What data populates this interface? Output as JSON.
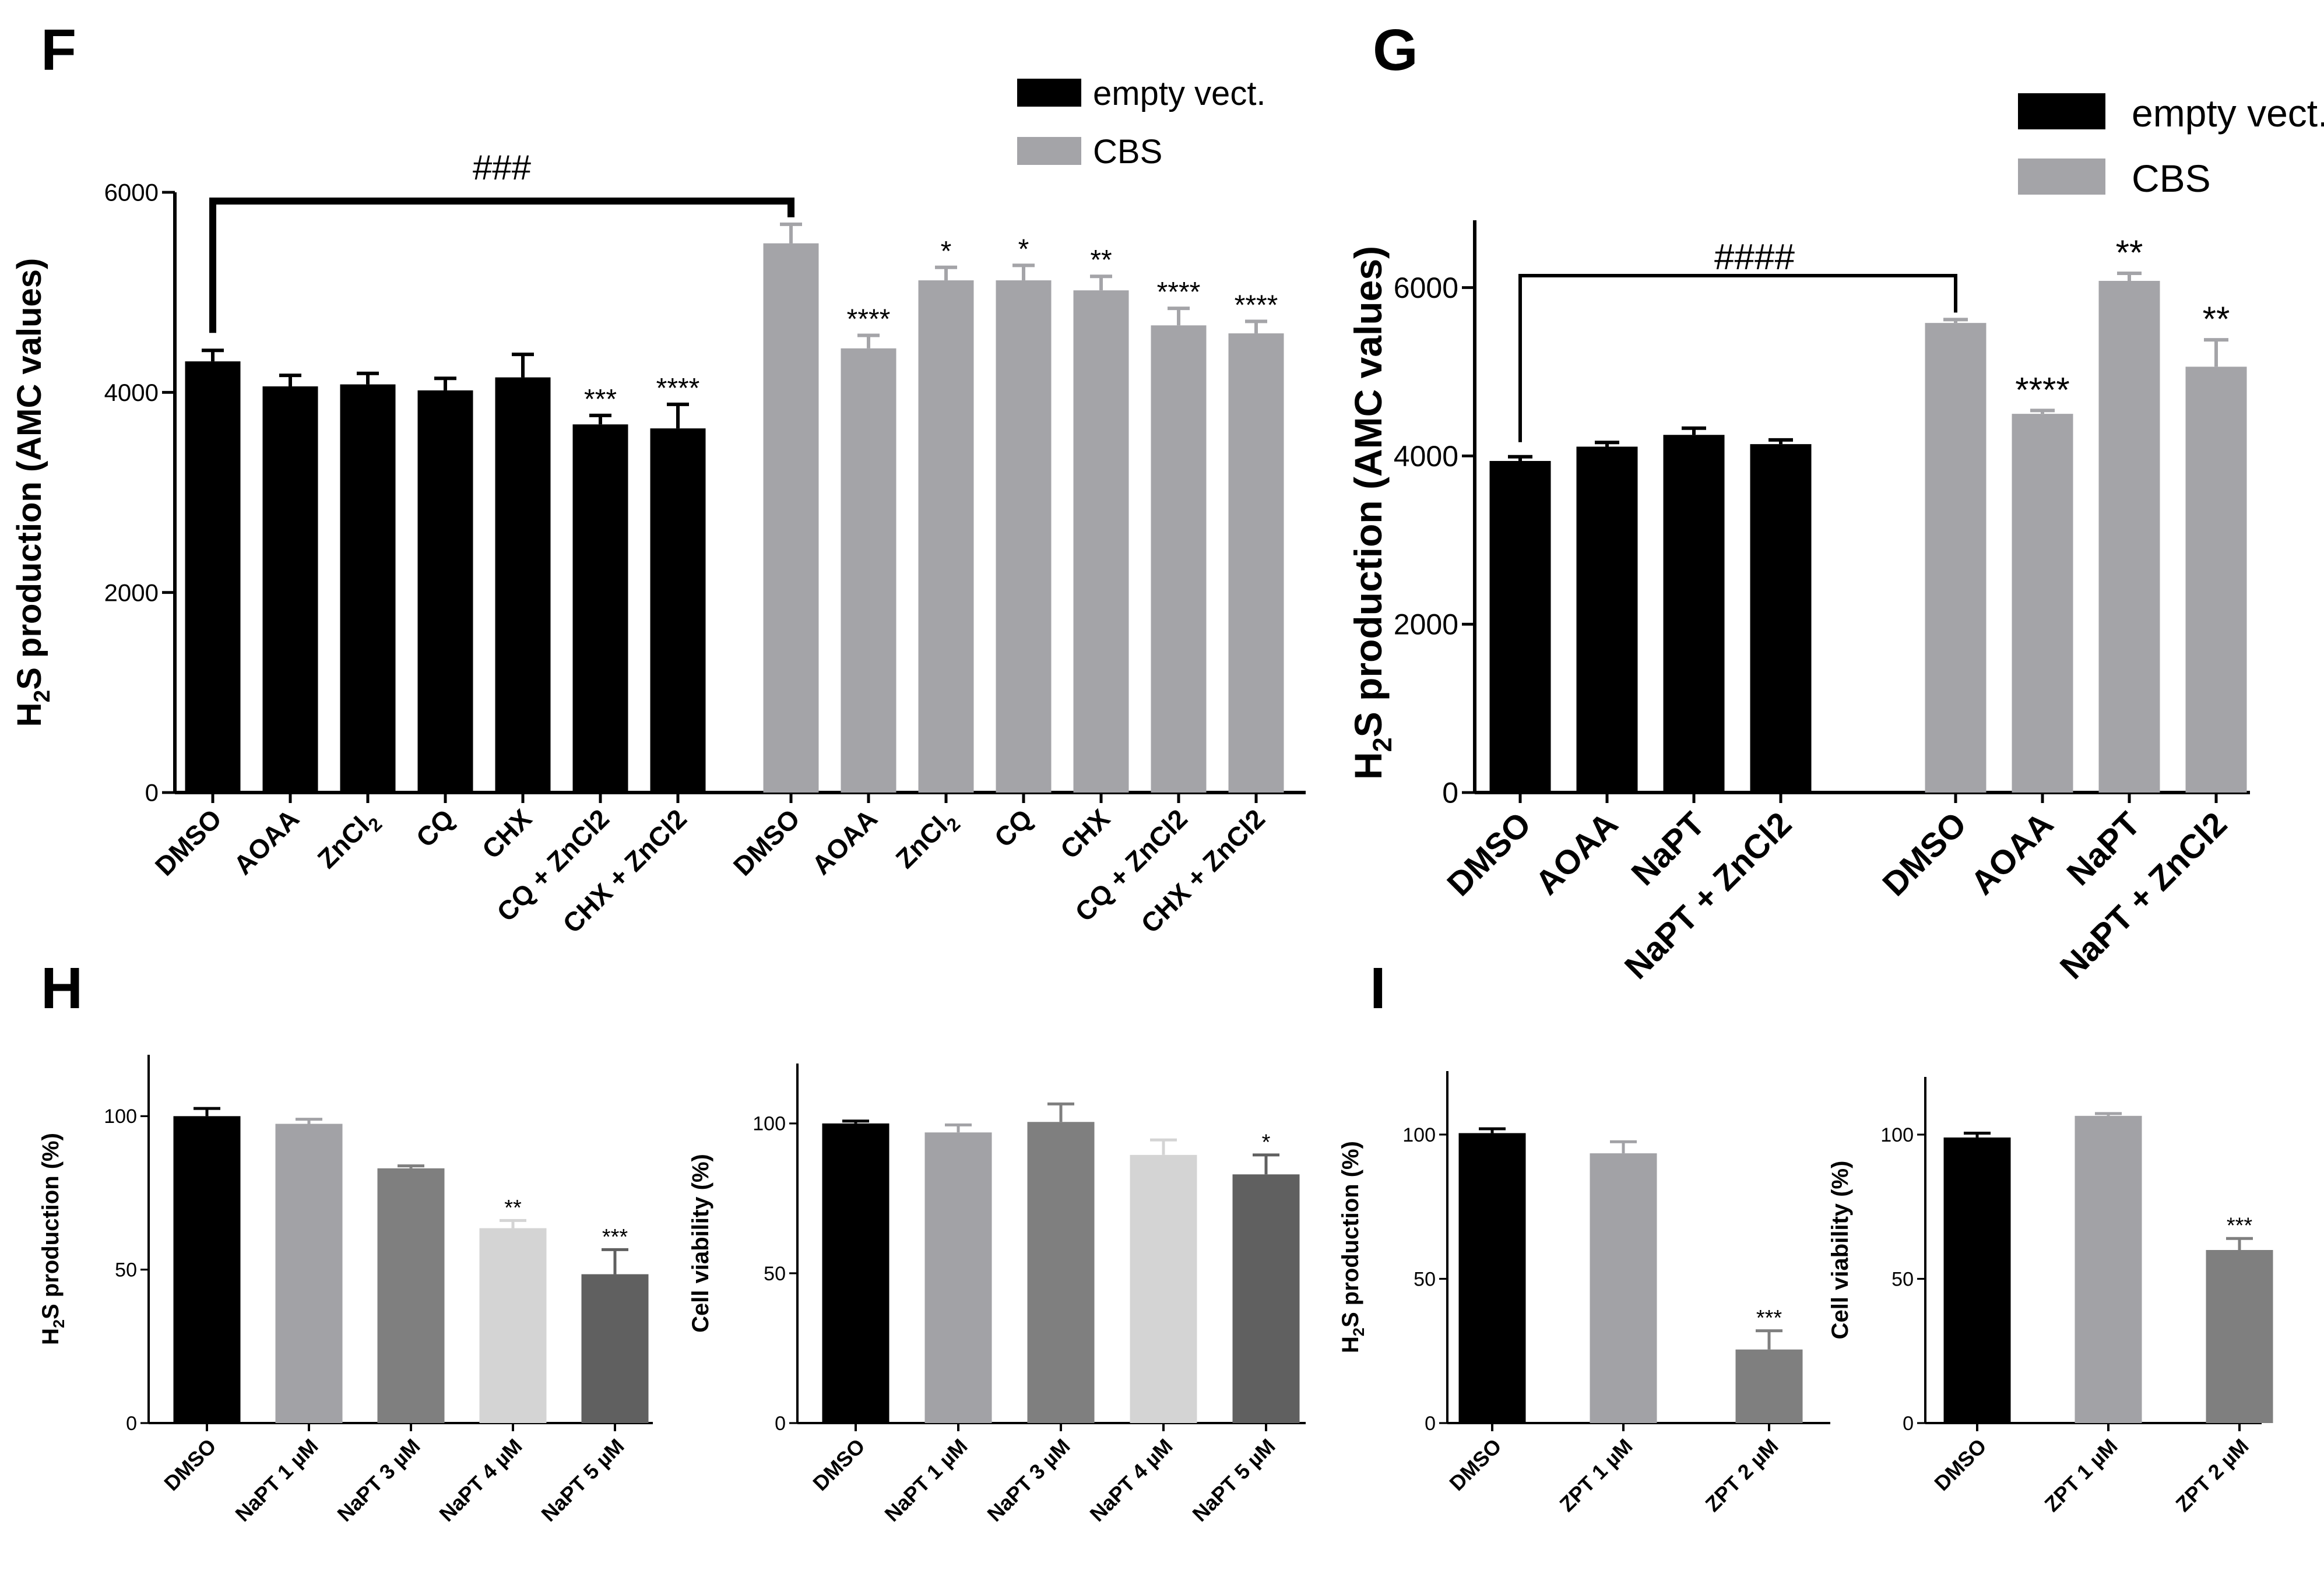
{
  "colors": {
    "black": "#000000",
    "gray_cbs": "#a4a4a8",
    "gray_light": "#a2a2a6",
    "gray_mid": "#7f7f7f",
    "gray_pale": "#d4d4d4",
    "gray_dark": "#606060"
  },
  "chart_data": [
    {
      "panel": "F",
      "type": "bar",
      "ylabel": "H2S production (AMC values)",
      "ylabel_main": "H",
      "ylabel_sub": "2",
      "ylabel_rest": "S production (AMC values)",
      "ylim": [
        0,
        6000
      ],
      "yticks": [
        0,
        2000,
        4000,
        6000
      ],
      "legend": [
        {
          "label": "empty vect.",
          "color": "#000000"
        },
        {
          "label": "CBS",
          "color": "#a4a4a8"
        }
      ],
      "bracket_label": "###",
      "groups": [
        {
          "name": "empty vect.",
          "color": "#000000",
          "categories": [
            "DMSO",
            "AOAA",
            "ZnCl2",
            "CQ",
            "CHX",
            "CQ + ZnCl2",
            "CHX + ZnCl2"
          ],
          "values": [
            4310,
            4060,
            4080,
            4020,
            4150,
            3680,
            3640
          ],
          "errors": [
            110,
            110,
            110,
            120,
            230,
            90,
            240
          ],
          "sig": [
            "",
            "",
            "",
            "",
            "",
            "***",
            "****"
          ]
        },
        {
          "name": "CBS",
          "color": "#a4a4a8",
          "categories": [
            "DMSO",
            "AOAA",
            "ZnCl2",
            "CQ",
            "CHX",
            "CQ + ZnCl2",
            "CHX + ZnCl2"
          ],
          "values": [
            5490,
            4440,
            5120,
            5120,
            5020,
            4670,
            4590
          ],
          "errors": [
            190,
            130,
            130,
            150,
            140,
            170,
            120
          ],
          "sig": [
            "",
            "****",
            "*",
            "*",
            "**",
            "****",
            "****"
          ]
        }
      ]
    },
    {
      "panel": "G",
      "type": "bar",
      "ylabel": "H2S production (AMC values)",
      "ylabel_main": "H",
      "ylabel_sub": "2",
      "ylabel_rest": "S production (AMC values)",
      "ylim": [
        0,
        6800
      ],
      "yticks": [
        0,
        2000,
        4000,
        6000
      ],
      "legend": [
        {
          "label": "empty vect.",
          "color": "#000000"
        },
        {
          "label": "CBS",
          "color": "#a4a4a8"
        }
      ],
      "bracket_label": "####",
      "groups": [
        {
          "name": "empty vect.",
          "color": "#000000",
          "categories": [
            "DMSO",
            "AOAA",
            "NaPT",
            "NaPT + ZnCl2"
          ],
          "values": [
            3940,
            4110,
            4250,
            4140
          ],
          "errors": [
            50,
            50,
            80,
            50
          ],
          "sig": [
            "",
            "",
            "",
            ""
          ]
        },
        {
          "name": "CBS",
          "color": "#a4a4a8",
          "categories": [
            "DMSO",
            "AOAA",
            "NaPT",
            "NaPT + ZnCl2"
          ],
          "values": [
            5580,
            4500,
            6080,
            5060
          ],
          "errors": [
            40,
            40,
            90,
            320
          ],
          "sig": [
            "",
            "****",
            "**",
            "**"
          ]
        }
      ]
    },
    {
      "panel": "H",
      "type": "bar",
      "ylabel": "H2S production (%)",
      "ylabel_main": "H",
      "ylabel_sub": "2",
      "ylabel_rest": "S production (%)",
      "ylim": [
        0,
        120
      ],
      "yticks": [
        0,
        50,
        100
      ],
      "categories": [
        "DMSO",
        "NaPT 1 µM",
        "NaPT 3 µM",
        "NaPT 4 µM",
        "NaPT 5 µM"
      ],
      "values": [
        100,
        97.5,
        83,
        63.5,
        48.5
      ],
      "errors": [
        2.5,
        1.5,
        0.8,
        2.5,
        8
      ],
      "colors": [
        "#000000",
        "#a2a2a6",
        "#7f7f7f",
        "#d4d4d4",
        "#606060"
      ],
      "sig": [
        "",
        "",
        "",
        "**",
        "***"
      ]
    },
    {
      "panel": "H2",
      "type": "bar",
      "ylabel": "Cell viability (%)",
      "ylim": [
        0,
        120
      ],
      "yticks": [
        0,
        50,
        100
      ],
      "categories": [
        "DMSO",
        "NaPT 1 µM",
        "NaPT 3 µM",
        "NaPT 4 µM",
        "NaPT 5 µM"
      ],
      "values": [
        100,
        97,
        100.5,
        89.5,
        83
      ],
      "errors": [
        0.8,
        2.5,
        6,
        5,
        6.5
      ],
      "colors": [
        "#000000",
        "#a2a2a6",
        "#7f7f7f",
        "#d4d4d4",
        "#606060"
      ],
      "sig": [
        "",
        "",
        "",
        "",
        "*"
      ]
    },
    {
      "panel": "I",
      "type": "bar",
      "ylabel": "H2S production (%)",
      "ylabel_main": "H",
      "ylabel_sub": "2",
      "ylabel_rest": "S production (%)",
      "ylim": [
        0,
        122
      ],
      "yticks": [
        0,
        50,
        100
      ],
      "categories": [
        "DMSO",
        "ZPT 1 µM",
        "ZPT 2 µM"
      ],
      "values": [
        100.5,
        93.5,
        25.5
      ],
      "errors": [
        1.5,
        4,
        6.5
      ],
      "colors": [
        "#000000",
        "#a2a2a6",
        "#7f7f7f"
      ],
      "sig": [
        "",
        "",
        "***"
      ]
    },
    {
      "panel": "I2",
      "type": "bar",
      "ylabel": "Cell viability (%)",
      "ylim": [
        0,
        120
      ],
      "yticks": [
        0,
        50,
        100
      ],
      "categories": [
        "DMSO",
        "ZPT 1 µM",
        "ZPT 2 µM"
      ],
      "values": [
        99,
        106.5,
        60
      ],
      "errors": [
        1.5,
        0.8,
        4
      ],
      "colors": [
        "#000000",
        "#a2a2a6",
        "#7f7f7f"
      ],
      "sig": [
        "",
        "",
        "***"
      ]
    }
  ],
  "panel_labels": [
    "F",
    "G",
    "H",
    "I"
  ]
}
